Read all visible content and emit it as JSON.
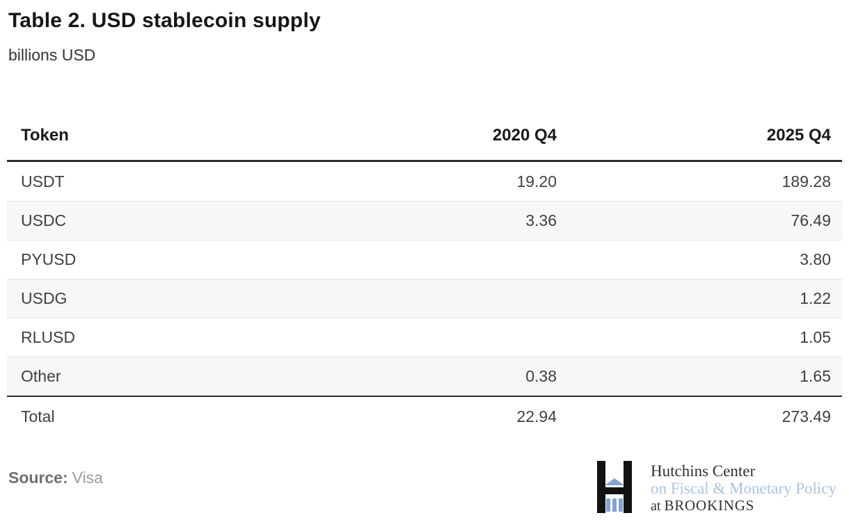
{
  "header": {
    "title": "Table 2. USD stablecoin supply",
    "subtitle": "billions USD"
  },
  "table": {
    "columns": [
      "Token",
      "2020 Q4",
      "2025 Q4"
    ],
    "rows": [
      {
        "token": "USDT",
        "q2020": "19.20",
        "q2025": "189.28"
      },
      {
        "token": "USDC",
        "q2020": "3.36",
        "q2025": "76.49"
      },
      {
        "token": "PYUSD",
        "q2020": "",
        "q2025": "3.80"
      },
      {
        "token": "USDG",
        "q2020": "",
        "q2025": "1.22"
      },
      {
        "token": "RLUSD",
        "q2020": "",
        "q2025": "1.05"
      },
      {
        "token": "Other",
        "q2020": "0.38",
        "q2025": "1.65"
      }
    ],
    "total": {
      "token": "Total",
      "q2020": "22.94",
      "q2025": "273.49"
    }
  },
  "footer": {
    "source_label": "Source:",
    "source_value": "Visa",
    "logo": {
      "line1": "Hutchins Center",
      "line2": "on Fiscal & Monetary Policy",
      "line3_prefix": "at",
      "line3_name": "BROOKINGS"
    }
  },
  "colors": {
    "header_rule": "#2b2b2b",
    "row_alt_background": "#f7f7f7",
    "row_separator": "#e4e4e4",
    "body_text": "#3f3f3f",
    "logo_black": "#121212",
    "logo_blue": "#84a3d2",
    "logo_blue_text": "#a9c3e3"
  },
  "chart_data": {
    "type": "table",
    "title": "Table 2. USD stablecoin supply",
    "subtitle": "billions USD",
    "columns": [
      "Token",
      "2020 Q4",
      "2025 Q4"
    ],
    "rows": [
      [
        "USDT",
        19.2,
        189.28
      ],
      [
        "USDC",
        3.36,
        76.49
      ],
      [
        "PYUSD",
        null,
        3.8
      ],
      [
        "USDG",
        null,
        1.22
      ],
      [
        "RLUSD",
        null,
        1.05
      ],
      [
        "Other",
        0.38,
        1.65
      ],
      [
        "Total",
        22.94,
        273.49
      ]
    ],
    "source": "Visa",
    "attribution": "Hutchins Center on Fiscal & Monetary Policy at BROOKINGS"
  }
}
